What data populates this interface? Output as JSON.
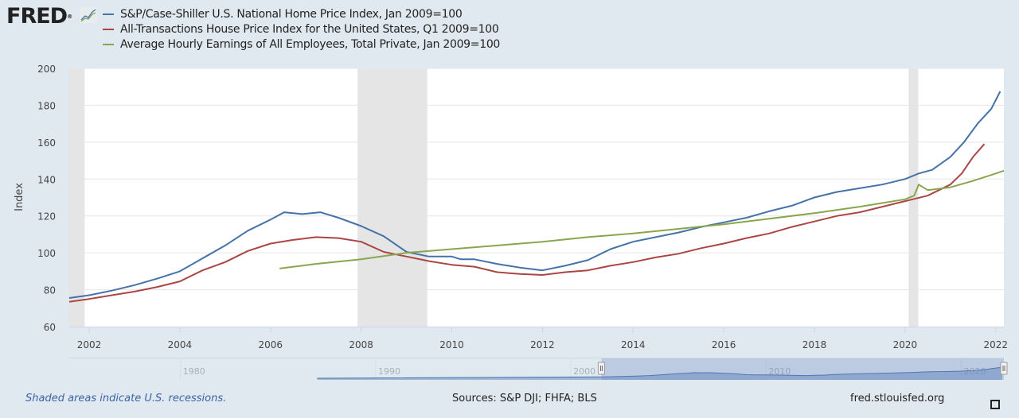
{
  "header": {
    "logo_text": "FRED",
    "logo_mark": "®",
    "logo_icon": "line-chart-icon"
  },
  "footer": {
    "note": "Shaded areas indicate U.S. recessions.",
    "sources": "Sources: S&P DJI; FHFA; BLS",
    "site": "fred.stlouisfed.org",
    "fullscreen_icon": "fullscreen-icon"
  },
  "chart_data": {
    "type": "line",
    "title": "",
    "xlabel": "",
    "ylabel": "Index",
    "xlim": [
      2001.56,
      2022.18
    ],
    "ylim": [
      60,
      200
    ],
    "yticks": [
      60,
      80,
      100,
      120,
      140,
      160,
      180,
      200
    ],
    "xticks": [
      2002,
      2004,
      2006,
      2008,
      2010,
      2012,
      2014,
      2016,
      2018,
      2020,
      2022
    ],
    "grid": true,
    "legend_position": "top-left",
    "recessions": [
      [
        2001.2,
        2001.9
      ],
      [
        2007.92,
        2009.46
      ],
      [
        2020.08,
        2020.29
      ]
    ],
    "series": [
      {
        "name": "S&P/Case-Shiller U.S. National Home Price Index, Jan 2009=100",
        "color": "#4572a7",
        "x": [
          2001.56,
          2002.0,
          2002.5,
          2003.0,
          2003.5,
          2004.0,
          2004.5,
          2005.0,
          2005.5,
          2006.0,
          2006.3,
          2006.7,
          2007.1,
          2007.5,
          2008.0,
          2008.5,
          2009.0,
          2009.5,
          2010.0,
          2010.2,
          2010.5,
          2011.0,
          2011.5,
          2012.0,
          2012.5,
          2013.0,
          2013.5,
          2014.0,
          2014.5,
          2015.0,
          2015.5,
          2016.0,
          2016.5,
          2017.0,
          2017.5,
          2018.0,
          2018.5,
          2019.0,
          2019.5,
          2020.0,
          2020.3,
          2020.6,
          2021.0,
          2021.3,
          2021.6,
          2021.9,
          2022.1
        ],
        "y": [
          75.5,
          77,
          79.5,
          82.5,
          86,
          90,
          97,
          104,
          112,
          118,
          122,
          121,
          122,
          119,
          114.5,
          109,
          100.5,
          98,
          98,
          96.5,
          96.5,
          94,
          92,
          90.5,
          93,
          96,
          102,
          106,
          108.5,
          111,
          114,
          116.5,
          119,
          122.5,
          125.5,
          130,
          133,
          135,
          137,
          140,
          143,
          145,
          152,
          160,
          170,
          178,
          187.5
        ]
      },
      {
        "name": "All-Transactions House Price Index for the United States, Q1 2009=100",
        "color": "#aa4643",
        "x": [
          2001.56,
          2002.0,
          2002.5,
          2003.0,
          2003.5,
          2004.0,
          2004.5,
          2005.0,
          2005.5,
          2006.0,
          2006.5,
          2007.0,
          2007.5,
          2008.0,
          2008.5,
          2009.0,
          2009.5,
          2010.0,
          2010.5,
          2011.0,
          2011.5,
          2012.0,
          2012.5,
          2013.0,
          2013.5,
          2014.0,
          2014.5,
          2015.0,
          2015.5,
          2016.0,
          2016.5,
          2017.0,
          2017.5,
          2018.0,
          2018.5,
          2019.0,
          2019.5,
          2020.0,
          2020.5,
          2021.0,
          2021.25,
          2021.5,
          2021.75
        ],
        "y": [
          73.5,
          75,
          77,
          79,
          81.5,
          84.5,
          90.5,
          95,
          101,
          105,
          107,
          108.5,
          108,
          106,
          100.5,
          98,
          95.5,
          93.5,
          92.5,
          89.5,
          88.5,
          88,
          89.5,
          90.5,
          93,
          95,
          97.5,
          99.5,
          102.5,
          105,
          108,
          110.5,
          114,
          117,
          120,
          122,
          125,
          128,
          131,
          137,
          143,
          152,
          159
        ]
      },
      {
        "name": "Average Hourly Earnings of All Employees, Total Private, Jan 2009=100",
        "color": "#89a54e",
        "x": [
          2006.2,
          2007.0,
          2008.0,
          2009.0,
          2010.0,
          2011.0,
          2012.0,
          2013.0,
          2014.0,
          2015.0,
          2016.0,
          2017.0,
          2018.0,
          2019.0,
          2020.0,
          2020.2,
          2020.3,
          2020.5,
          2021.0,
          2021.5,
          2022.0,
          2022.18
        ],
        "y": [
          91.5,
          94,
          96.5,
          100,
          102,
          104,
          106,
          108.5,
          110.5,
          113,
          115.5,
          118.5,
          121.5,
          125,
          129,
          131,
          137,
          134,
          135.5,
          139,
          143,
          144.5
        ]
      }
    ],
    "navigator": {
      "labels": [
        "1980",
        "1990",
        "2000",
        "2010",
        "2020"
      ],
      "label_years": [
        1980,
        1990,
        2000,
        2010,
        2020
      ],
      "range_years": [
        1974.3,
        2022.18
      ],
      "selected_range": [
        2001.56,
        2022.18
      ],
      "series_start_year": 1987
    }
  }
}
